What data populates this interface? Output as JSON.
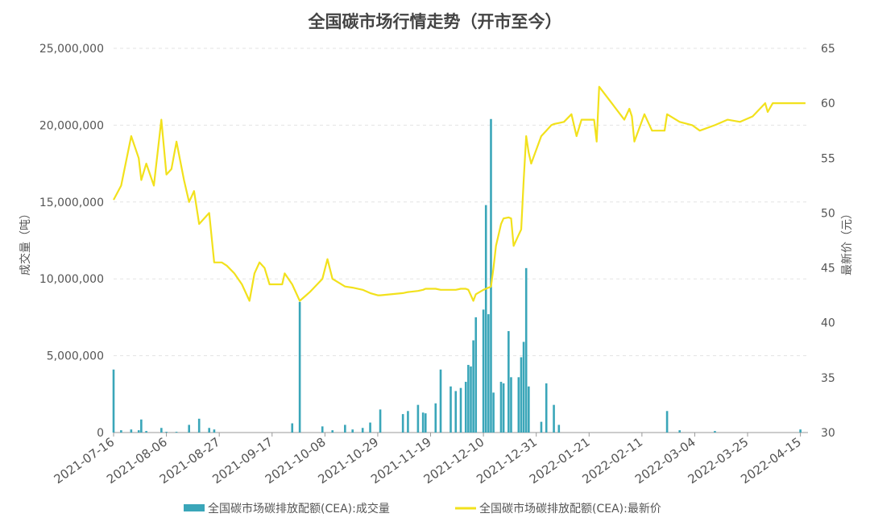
{
  "chart_data": {
    "type": "bar-line",
    "title": "全国碳市场行情走势（开市至今）",
    "y_label": "成交量（吨）",
    "y2_label": "最新价（元）",
    "x": [
      "2021-07-16",
      "2021-07-19",
      "2021-07-23",
      "2021-07-26",
      "2021-07-27",
      "2021-07-29",
      "2021-08-01",
      "2021-08-04",
      "2021-08-06",
      "2021-08-08",
      "2021-08-10",
      "2021-08-13",
      "2021-08-15",
      "2021-08-17",
      "2021-08-19",
      "2021-08-23",
      "2021-08-25",
      "2021-08-28",
      "2021-08-30",
      "2021-09-02",
      "2021-09-05",
      "2021-09-08",
      "2021-09-10",
      "2021-09-12",
      "2021-09-14",
      "2021-09-16",
      "2021-09-21",
      "2021-09-22",
      "2021-09-25",
      "2021-09-28",
      "2021-10-02",
      "2021-10-07",
      "2021-10-09",
      "2021-10-11",
      "2021-10-16",
      "2021-10-19",
      "2021-10-23",
      "2021-10-26",
      "2021-10-29",
      "2021-10-30",
      "2021-11-08",
      "2021-11-10",
      "2021-11-14",
      "2021-11-16",
      "2021-11-17",
      "2021-11-21",
      "2021-11-23",
      "2021-11-27",
      "2021-11-29",
      "2021-12-01",
      "2021-12-03",
      "2021-12-04",
      "2021-12-05",
      "2021-12-06",
      "2021-12-07",
      "2021-12-10",
      "2021-12-11",
      "2021-12-12",
      "2021-12-13",
      "2021-12-14",
      "2021-12-15",
      "2021-12-17",
      "2021-12-18",
      "2021-12-20",
      "2021-12-21",
      "2021-12-22",
      "2021-12-24",
      "2021-12-25",
      "2021-12-26",
      "2021-12-27",
      "2021-12-28",
      "2021-12-29",
      "2022-01-02",
      "2022-01-04",
      "2022-01-06",
      "2022-01-07",
      "2022-01-09",
      "2022-01-11",
      "2022-01-14",
      "2022-01-16",
      "2022-01-18",
      "2022-01-23",
      "2022-01-24",
      "2022-01-25",
      "2022-01-30",
      "2022-02-04",
      "2022-02-06",
      "2022-02-07",
      "2022-02-08",
      "2022-02-12",
      "2022-02-15",
      "2022-02-20",
      "2022-02-21",
      "2022-02-26",
      "2022-03-03",
      "2022-03-06",
      "2022-03-12",
      "2022-03-17",
      "2022-03-22",
      "2022-03-27",
      "2022-04-01",
      "2022-04-02",
      "2022-04-04",
      "2022-04-15",
      "2022-04-17"
    ],
    "series": [
      {
        "name": "全国碳市场碳排放配额(CEA):成交量",
        "type": "bar",
        "color": "#3aa6b9",
        "values": [
          4100000,
          150000,
          200000,
          150000,
          850000,
          100000,
          0,
          300000,
          50000,
          0,
          50000,
          0,
          500000,
          0,
          900000,
          300000,
          200000,
          0,
          0,
          0,
          0,
          0,
          0,
          0,
          0,
          0,
          0,
          0,
          600000,
          8500000,
          0,
          400000,
          0,
          150000,
          500000,
          200000,
          300000,
          650000,
          0,
          1500000,
          1200000,
          1400000,
          1800000,
          1300000,
          1250000,
          1900000,
          4100000,
          3000000,
          2700000,
          2900000,
          3300000,
          4400000,
          4300000,
          6000000,
          7500000,
          8000000,
          14800000,
          7700000,
          20400000,
          2600000,
          0,
          3300000,
          3200000,
          6600000,
          3600000,
          0,
          3600000,
          4900000,
          5900000,
          10700000,
          3000000,
          0,
          700000,
          3200000,
          0,
          1800000,
          500000,
          0,
          0,
          0,
          0,
          0,
          0,
          0,
          0,
          0,
          0,
          0,
          0,
          0,
          0,
          0,
          1400000,
          150000,
          0,
          0,
          100000,
          0,
          0,
          0,
          0,
          0,
          0,
          200000,
          0
        ]
      },
      {
        "name": "全国碳市场碳排放配额(CEA):最新价",
        "type": "line",
        "axis": "y2",
        "color": "#f2e11c",
        "values": [
          51.2,
          52.5,
          57,
          55,
          53,
          54.5,
          52.5,
          58.5,
          53.5,
          54,
          56.5,
          53,
          51,
          52,
          49,
          50,
          45.5,
          45.5,
          45.2,
          44.5,
          43.5,
          42,
          44.5,
          45.5,
          45,
          43.5,
          43.5,
          44.5,
          43.5,
          42,
          42.8,
          44,
          45.8,
          44,
          43.3,
          43.2,
          43,
          42.7,
          42.5,
          42.5,
          42.7,
          42.8,
          42.9,
          43,
          43.1,
          43.1,
          43,
          43,
          43,
          43.1,
          43.1,
          43,
          42.5,
          42,
          42.6,
          43,
          43.1,
          43.2,
          43.3,
          45,
          47,
          49,
          49.5,
          49.6,
          49.5,
          47,
          48,
          48.5,
          53,
          57,
          55.5,
          54.5,
          57,
          57.5,
          58,
          58.1,
          58.2,
          58.3,
          59,
          57,
          58.5,
          58.5,
          56.5,
          61.5,
          60,
          58.5,
          59.5,
          58.8,
          56.5,
          59,
          57.5,
          57.5,
          59,
          58.3,
          58,
          57.5,
          58,
          58.5,
          58.3,
          58.8,
          60,
          59.2,
          60,
          60,
          60
        ]
      }
    ],
    "xlim": [
      "2021-07-16",
      "2022-04-18"
    ],
    "xticks": [
      "2021-07-16",
      "2021-08-06",
      "2021-08-27",
      "2021-09-17",
      "2021-10-08",
      "2021-10-29",
      "2021-11-19",
      "2021-12-10",
      "2021-12-31",
      "2022-01-21",
      "2022-02-11",
      "2022-03-04",
      "2022-03-25",
      "2022-04-15"
    ],
    "ylim": [
      0,
      25000000
    ],
    "yticks": [
      0,
      {
        "value": 5000000,
        "label": "5,000,000"
      },
      {
        "value": 10000000,
        "label": "10,000,000"
      },
      {
        "value": 15000000,
        "label": "15,000,000"
      },
      {
        "value": 20000000,
        "label": "20,000,000"
      },
      {
        "value": 25000000,
        "label": "25,000,000"
      }
    ],
    "y2lim": [
      30,
      65
    ],
    "y2ticks": [
      30,
      35,
      40,
      45,
      50,
      55,
      60,
      65
    ],
    "grid": true
  }
}
